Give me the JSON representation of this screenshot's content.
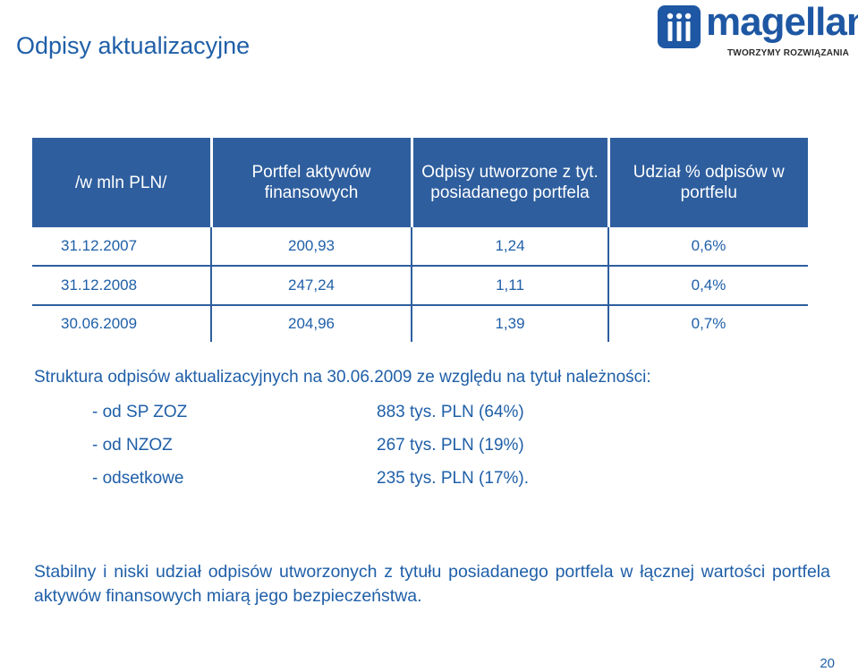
{
  "slide": {
    "title": "Odpisy aktualizacyjne",
    "page_number": "20"
  },
  "logo": {
    "wordmark": "magellan",
    "tagline": "TWORZYMY ROZWIĄZANIA",
    "brand_color": "#1e57a3"
  },
  "table": {
    "headers": [
      "/w mln PLN/",
      "Portfel aktywów finansowych",
      "Odpisy utworzone z tyt. posiadanego portfela",
      "Udział % odpisów w portfelu"
    ],
    "rows": [
      [
        "31.12.2007",
        "200,93",
        "1,24",
        "0,6%"
      ],
      [
        "31.12.2008",
        "247,24",
        "1,11",
        "0,4%"
      ],
      [
        "30.06.2009",
        "204,96",
        "1,39",
        "0,7%"
      ]
    ],
    "header_color": "#2e5e9e"
  },
  "structure": {
    "heading": "Struktura odpisów aktualizacyjnych na 30.06.2009 ze względu na tytuł należności:",
    "items": [
      {
        "label": "-  od SP ZOZ",
        "value": "883 tys. PLN (64%)"
      },
      {
        "label": "- od NZOZ",
        "value": "267 tys. PLN (19%)"
      },
      {
        "label": "- odsetkowe",
        "value": "235 tys. PLN (17%)."
      }
    ]
  },
  "conclusion": "Stabilny i niski udział odpisów utworzonych z tytułu posiadanego portfela w łącznej wartości portfela aktywów finansowych miarą jego bezpieczeństwa.",
  "colors": {
    "text_blue": "#1f5fa8"
  }
}
